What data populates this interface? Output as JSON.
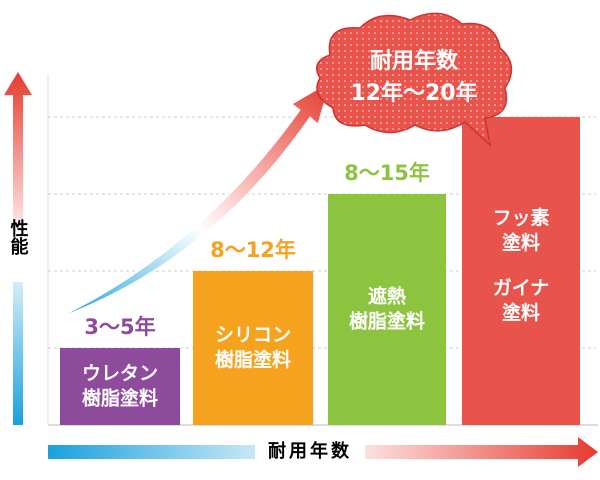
{
  "chart_data": {
    "type": "bar",
    "y_label": "性能",
    "x_label": "耐用年数",
    "categories": [
      [
        "ウレタン",
        "樹脂塗料"
      ],
      [
        "シリコン",
        "樹脂塗料"
      ],
      [
        "遮熱",
        "樹脂塗料"
      ],
      [
        "フッ素",
        "塗料",
        "ガイナ",
        "塗料"
      ]
    ],
    "values": [
      1,
      2,
      3,
      4
    ],
    "value_labels": [
      "3〜5年",
      "8〜12年",
      "8〜15年",
      null
    ],
    "colors": [
      "#8e4b9c",
      "#f5a31f",
      "#8cc43f",
      "#e8544c"
    ],
    "ylim": [
      0,
      4
    ],
    "grid": true,
    "annotation": [
      "耐用年数",
      "12年〜20年"
    ]
  }
}
